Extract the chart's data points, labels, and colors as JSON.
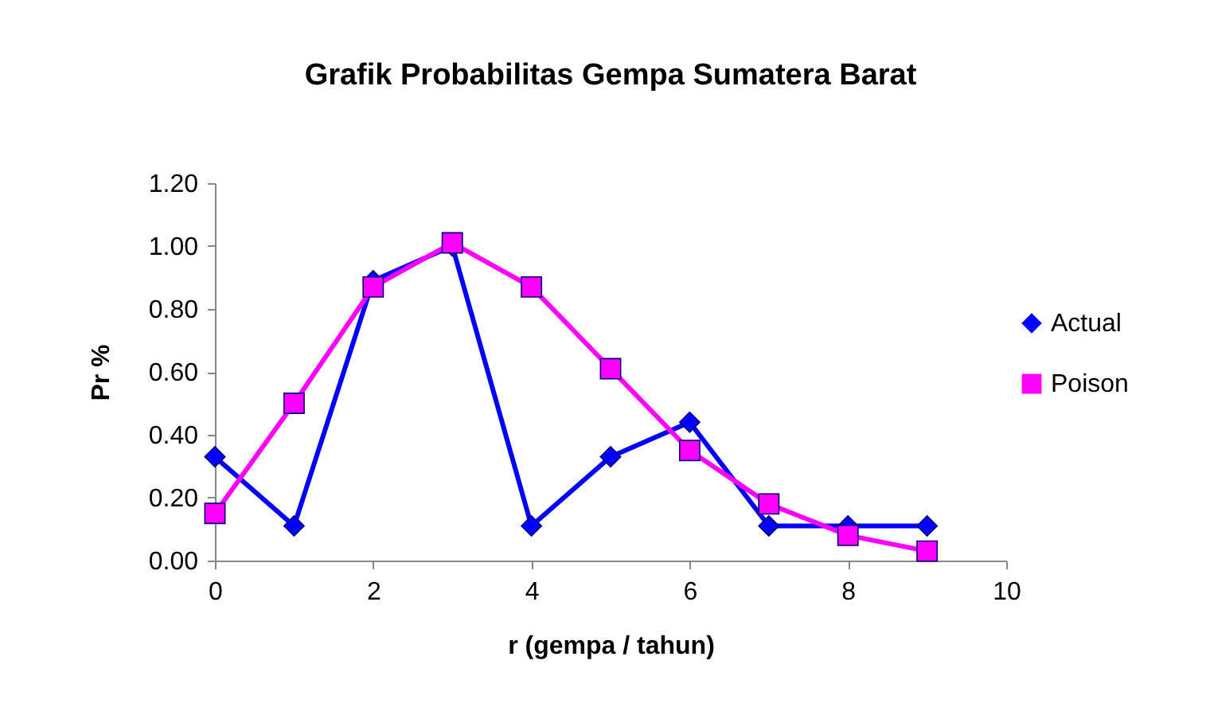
{
  "chart_data": {
    "type": "line",
    "title": "Grafik Probabilitas Gempa Sumatera Barat",
    "xlabel": "r (gempa / tahun)",
    "ylabel": "Pr %",
    "x": [
      0,
      1,
      2,
      3,
      4,
      5,
      6,
      7,
      8,
      9
    ],
    "series": [
      {
        "name": "Actual",
        "color": "#0000ff",
        "marker": "diamond",
        "values": [
          0.33,
          0.11,
          0.89,
          1.0,
          0.11,
          0.33,
          0.44,
          0.11,
          0.11,
          0.11
        ]
      },
      {
        "name": "Poison",
        "color": "#ff00ff",
        "marker": "square",
        "values": [
          0.15,
          0.5,
          0.87,
          1.01,
          0.87,
          0.61,
          0.35,
          0.18,
          0.08,
          0.03
        ]
      }
    ],
    "xlim": [
      0,
      10
    ],
    "xticks": [
      0,
      2,
      4,
      6,
      8,
      10
    ],
    "ylim": [
      0,
      1.2
    ],
    "yticks": [
      {
        "value": 0,
        "label": "0.00"
      },
      {
        "value": 0.2,
        "label": "0.20"
      },
      {
        "value": 0.4,
        "label": "0.40"
      },
      {
        "value": 0.6,
        "label": "0.60"
      },
      {
        "value": 0.8,
        "label": "0.80"
      },
      {
        "value": 1.0,
        "label": "1.00"
      },
      {
        "value": 1.2,
        "label": "1.20"
      }
    ],
    "line_style": "solid",
    "grid": false,
    "legend": "right"
  }
}
